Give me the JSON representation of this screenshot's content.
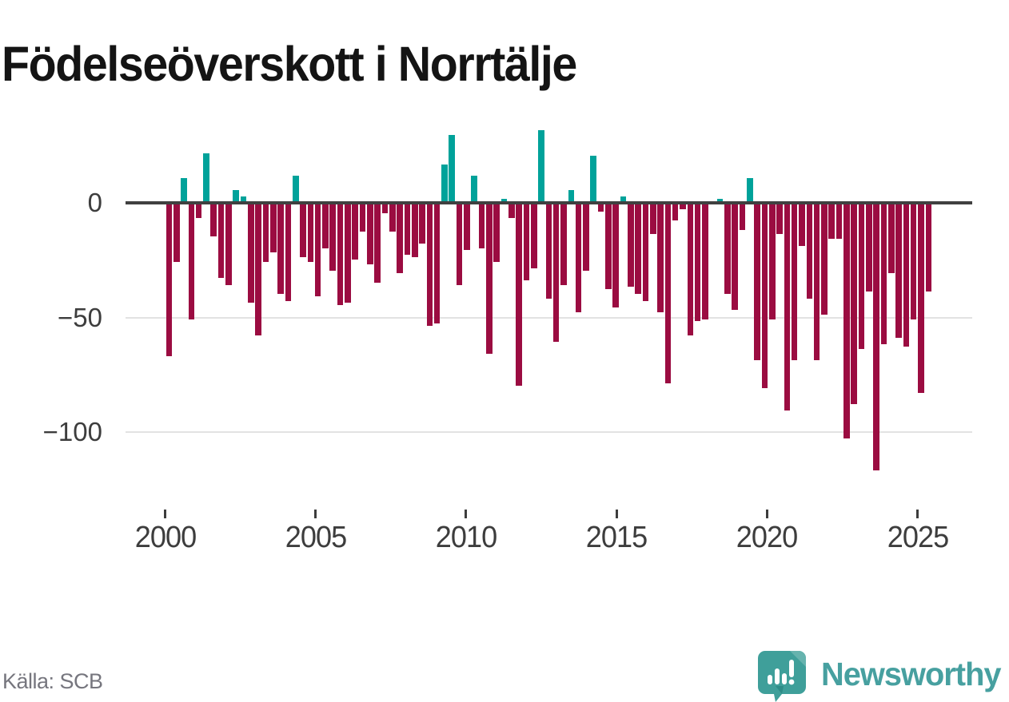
{
  "title": "Födelseöverskott i Norrtälje",
  "source": "Källa: SCB",
  "branding": {
    "logo_text": "Newsworthy",
    "logo_icon": "speech-bubble-bar-chart"
  },
  "colors": {
    "positive": "#00a29a",
    "negative": "#9b0c41",
    "zero_line": "#404040",
    "gridline": "#e2e2e2",
    "axis_text": "#3d3d3d",
    "source_text": "#76767e",
    "brand_teal": "#3f9f9a",
    "title_text": "#141414"
  },
  "y_axis": {
    "tick_values": [
      0,
      -50,
      -100
    ],
    "tick_labels": [
      "0",
      "−50",
      "−100"
    ]
  },
  "x_axis": {
    "tick_years": [
      2000,
      2005,
      2010,
      2015,
      2020,
      2025
    ]
  },
  "chart_data": {
    "type": "bar",
    "title": "Födelseöverskott i Norrtälje",
    "xlabel": "",
    "ylabel": "",
    "frequency": "quarterly",
    "start_year": 2000,
    "start_quarter": 1,
    "end_year": 2025,
    "end_quarter": 3,
    "ylim": [
      -125,
      35
    ],
    "grid": "horizontal",
    "legend": "none",
    "positive_color_meaning": "birth surplus",
    "negative_color_meaning": "birth deficit",
    "values": [
      -66,
      -25,
      10,
      -50,
      -6,
      21,
      -14,
      -32,
      -35,
      5,
      2,
      -43,
      -57,
      -25,
      -21,
      -39,
      -42,
      11,
      -23,
      -25,
      -40,
      -19,
      -29,
      -44,
      -43,
      -24,
      -12,
      -26,
      -34,
      -4,
      -12,
      -30,
      -22,
      -23,
      -17,
      -53,
      -52,
      16,
      29,
      -35,
      -20,
      11,
      -19,
      -65,
      -25,
      1,
      -6,
      -79,
      -33,
      -28,
      31,
      -41,
      -60,
      -35,
      5,
      -47,
      -29,
      20,
      -3,
      -37,
      -45,
      2,
      -36,
      -39,
      -42,
      -13,
      -47,
      -78,
      -7,
      -2,
      -57,
      -51,
      -50,
      0,
      1,
      -39,
      -46,
      -11,
      10,
      -68,
      -80,
      -50,
      -13,
      -90,
      -68,
      -18,
      -41,
      -68,
      -48,
      -15,
      -15,
      -102,
      -87,
      -63,
      -38,
      -116,
      -61,
      -30,
      -58,
      -62,
      -50,
      -82,
      -38
    ]
  }
}
